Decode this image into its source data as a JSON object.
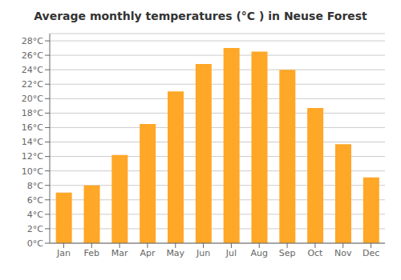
{
  "chart_data": {
    "type": "bar",
    "title": "Average monthly temperatures (°C ) in Neuse Forest",
    "categories": [
      "Jan",
      "Feb",
      "Mar",
      "Apr",
      "May",
      "Jun",
      "Jul",
      "Aug",
      "Sep",
      "Oct",
      "Nov",
      "Dec"
    ],
    "values": [
      7.0,
      8.0,
      12.2,
      16.5,
      21.0,
      24.8,
      27.0,
      26.5,
      24.0,
      18.7,
      13.7,
      9.1
    ],
    "color": "#FFA726",
    "ylim": [
      0,
      29
    ],
    "yticks": [
      {
        "value": 0,
        "label": "0°C"
      },
      {
        "value": 2,
        "label": "2°C"
      },
      {
        "value": 4,
        "label": "4°C"
      },
      {
        "value": 6,
        "label": "6°C"
      },
      {
        "value": 8,
        "label": "8°C"
      },
      {
        "value": 10,
        "label": "10°C"
      },
      {
        "value": 12,
        "label": "12°C"
      },
      {
        "value": 14,
        "label": "14°C"
      },
      {
        "value": 16,
        "label": "16°C"
      },
      {
        "value": 18,
        "label": "18°C"
      },
      {
        "value": 20,
        "label": "20°C"
      },
      {
        "value": 22,
        "label": "22°C"
      },
      {
        "value": 24,
        "label": "24°C"
      },
      {
        "value": 26,
        "label": "26°C"
      },
      {
        "value": 28,
        "label": "28°C"
      }
    ],
    "grid": true
  }
}
